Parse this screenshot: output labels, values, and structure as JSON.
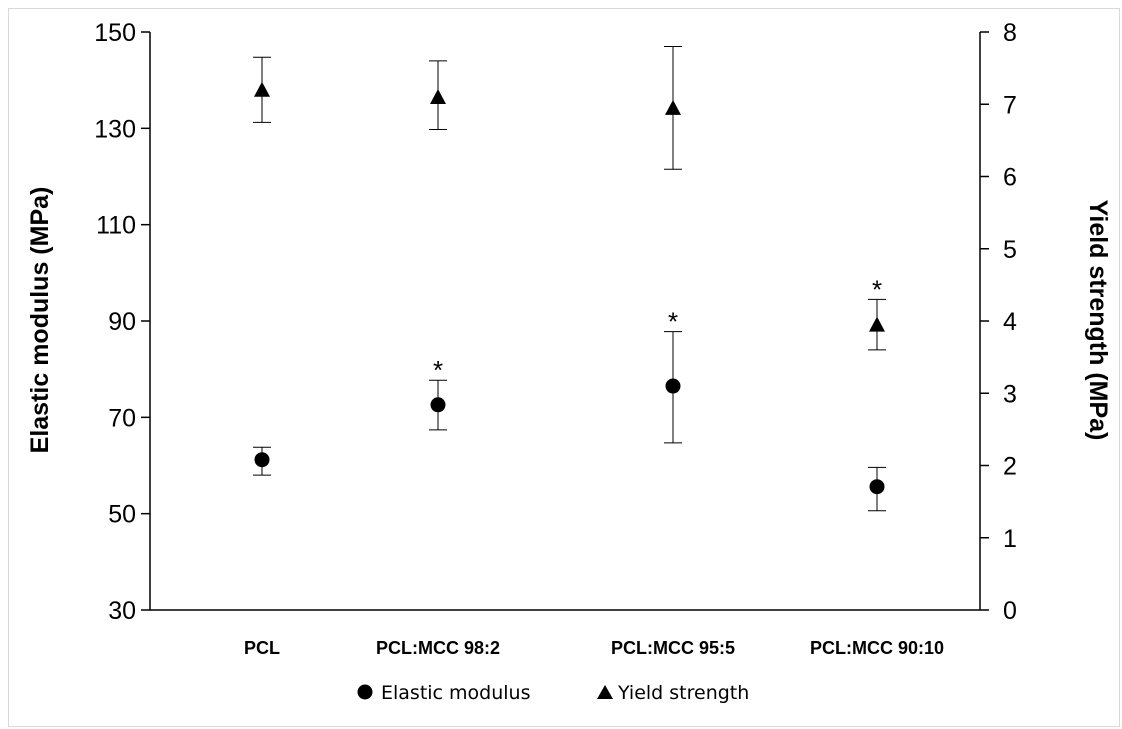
{
  "chart_data": {
    "type": "scatter",
    "categories": [
      "PCL",
      "PCL:MCC 98:2",
      "PCL:MCC 95:5",
      "PCL:MCC 90:10"
    ],
    "series": [
      {
        "name": "Elastic modulus",
        "axis": "left",
        "marker": "circle",
        "values": [
          61.2,
          72.6,
          76.5,
          55.6
        ],
        "error_low": [
          58.0,
          67.4,
          64.7,
          50.6
        ],
        "error_high": [
          63.8,
          77.7,
          87.8,
          59.6
        ]
      },
      {
        "name": "Yield strength",
        "axis": "right",
        "marker": "triangle",
        "values": [
          7.2,
          7.1,
          6.95,
          3.95
        ],
        "error_low": [
          6.75,
          6.65,
          6.1,
          3.6
        ],
        "error_high": [
          7.65,
          7.6,
          7.8,
          4.3
        ]
      }
    ],
    "annotations": [
      {
        "text": "*",
        "category": "PCL:MCC 98:2",
        "series": "Elastic modulus"
      },
      {
        "text": "*",
        "category": "PCL:MCC 95:5",
        "series": "Elastic modulus"
      },
      {
        "text": "*",
        "category": "PCL:MCC 90:10",
        "series": "Yield strength"
      }
    ],
    "ylabel": "Elastic modulus (MPa)",
    "y2label": "Yield strength (MPa)",
    "ylim": [
      30,
      150
    ],
    "y2lim": [
      0,
      8
    ],
    "yticks": [
      "30",
      "50",
      "70",
      "90",
      "110",
      "130",
      "150"
    ],
    "y2ticks": [
      "0",
      "1",
      "2",
      "3",
      "4",
      "5",
      "6",
      "7",
      "8"
    ],
    "grid": false,
    "legend_position": "bottom",
    "legend_entries": [
      "Elastic modulus",
      "Yield strength"
    ]
  }
}
